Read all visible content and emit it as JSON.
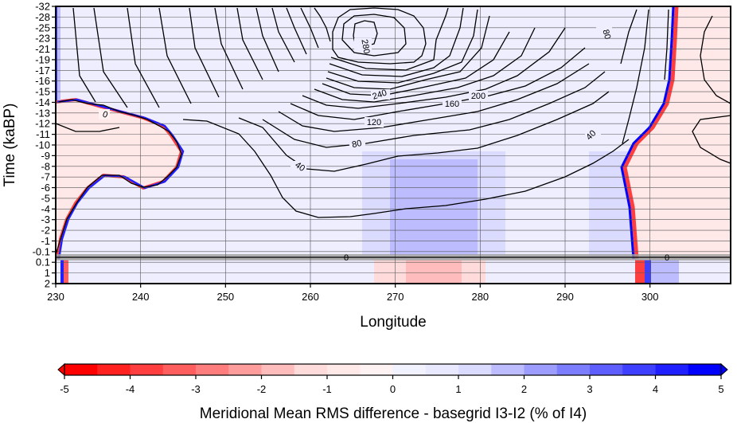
{
  "chart_data": {
    "type": "heatmap",
    "xlabel": "Longitude",
    "ylabel": "Time (kaBP)",
    "x_ticks": [
      230,
      240,
      250,
      260,
      270,
      280,
      290,
      300
    ],
    "xlim": [
      230,
      309.5
    ],
    "y_ticks": [
      "-32",
      "-28",
      "-25",
      "-23",
      "-21",
      "-19",
      "-17",
      "-16",
      "-15",
      "-14",
      "-13",
      "-12",
      "-11",
      "-10",
      "-9",
      "-8",
      "-7",
      "-6",
      "-5",
      "-4",
      "-3",
      "-2",
      "-1",
      "-0.1",
      "0.1",
      "1",
      "2"
    ],
    "grid": true,
    "colorbar": {
      "label": "Meridional Mean RMS difference - basegrid I3-I2 (% of I4)",
      "ticks": [
        "-5",
        "-4",
        "-3",
        "-2",
        "-1",
        "0",
        "1",
        "2",
        "3",
        "4",
        "5"
      ],
      "range": [
        -5,
        5
      ],
      "extend": "both",
      "colors": [
        "#ff0000",
        "#ff2020",
        "#ff3f3f",
        "#ff5e5e",
        "#ff7d7d",
        "#ff9d9d",
        "#ffbcbc",
        "#ffdbdb",
        "#ffe8e8",
        "#fff2f2",
        "#f2f2ff",
        "#e8e8ff",
        "#dbdbff",
        "#bcbcff",
        "#9d9dff",
        "#7d7dff",
        "#5e5eff",
        "#3f3fff",
        "#2020ff",
        "#0000ff"
      ]
    },
    "contour_labels": [
      "280",
      "240",
      "200",
      "160",
      "120",
      "80",
      "40",
      "0",
      "80",
      "40",
      "0",
      "0"
    ]
  }
}
